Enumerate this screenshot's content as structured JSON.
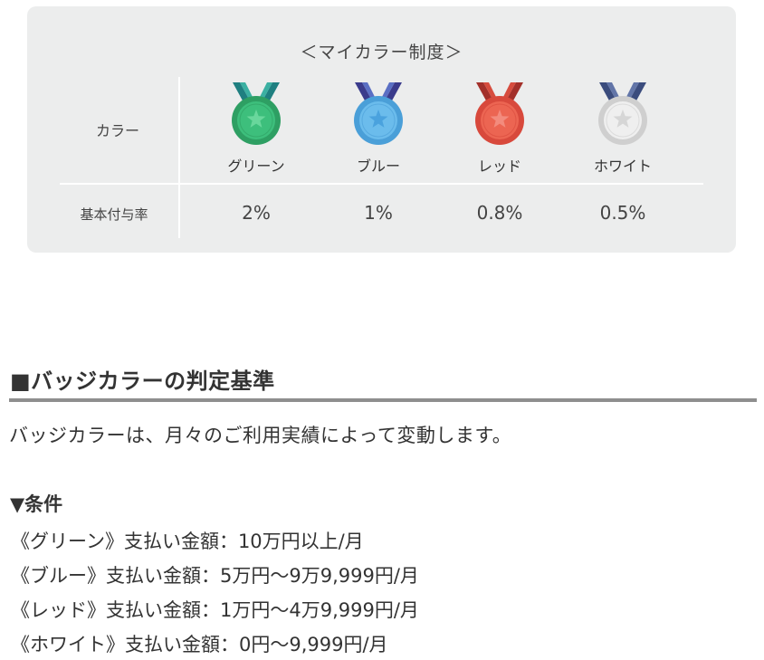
{
  "panel": {
    "title": "＜マイカラー制度＞",
    "color_row_label": "カラー",
    "rate_row_label": "基本付与率",
    "badges": [
      {
        "name": "グリーン",
        "rate": "2%",
        "icon": "green-medal-icon",
        "colors": {
          "ribbon_a": "#1f7f80",
          "ribbon_b": "#3bb0a2",
          "rim": "#2e9f63",
          "face": "#3dbf7c",
          "star": "#69d79c"
        }
      },
      {
        "name": "ブルー",
        "rate": "1%",
        "icon": "blue-medal-icon",
        "colors": {
          "ribbon_a": "#3a3b8c",
          "ribbon_b": "#5a6fc4",
          "rim": "#4a9fd8",
          "face": "#6bbcec",
          "star": "#4aa2de"
        }
      },
      {
        "name": "レッド",
        "rate": "0.8%",
        "icon": "red-medal-icon",
        "colors": {
          "ribbon_a": "#a3302a",
          "ribbon_b": "#d64c3e",
          "rim": "#d8493c",
          "face": "#ec6552",
          "star": "#f38b7d"
        }
      },
      {
        "name": "ホワイト",
        "rate": "0.5%",
        "icon": "white-medal-icon",
        "colors": {
          "ribbon_a": "#3b4c7d",
          "ribbon_b": "#6275a8",
          "rim": "#cfcfcf",
          "face": "#efefef",
          "star": "#d6d6d6"
        }
      }
    ]
  },
  "section": {
    "heading": "■バッジカラーの判定基準",
    "intro": "バッジカラーは、月々のご利用実績によって変動します。",
    "conditions_heading": "▼条件",
    "conditions": [
      "《グリーン》支払い金額：10万円以上/月",
      "《ブルー》支払い金額：5万円～9万9,999円/月",
      "《レッド》支払い金額：1万円～4万9,999円/月",
      "《ホワイト》支払い金額：0円～9,999円/月"
    ]
  }
}
